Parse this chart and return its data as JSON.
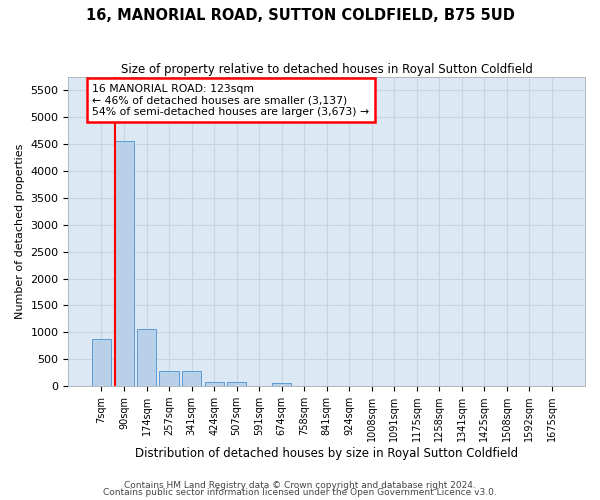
{
  "title": "16, MANORIAL ROAD, SUTTON COLDFIELD, B75 5UD",
  "subtitle": "Size of property relative to detached houses in Royal Sutton Coldfield",
  "xlabel": "Distribution of detached houses by size in Royal Sutton Coldfield",
  "ylabel": "Number of detached properties",
  "footnote1": "Contains HM Land Registry data © Crown copyright and database right 2024.",
  "footnote2": "Contains public sector information licensed under the Open Government Licence v3.0.",
  "bar_labels": [
    "7sqm",
    "90sqm",
    "174sqm",
    "257sqm",
    "341sqm",
    "424sqm",
    "507sqm",
    "591sqm",
    "674sqm",
    "758sqm",
    "841sqm",
    "924sqm",
    "1008sqm",
    "1091sqm",
    "1175sqm",
    "1258sqm",
    "1341sqm",
    "1425sqm",
    "1508sqm",
    "1592sqm",
    "1675sqm"
  ],
  "bar_values": [
    880,
    4560,
    1060,
    285,
    285,
    85,
    85,
    0,
    60,
    0,
    0,
    0,
    0,
    0,
    0,
    0,
    0,
    0,
    0,
    0,
    0
  ],
  "bar_color": "#b8d0e8",
  "bar_edge_color": "#5b9bd5",
  "grid_color": "#c8d4df",
  "background_color": "#dce8f3",
  "red_line_x": 0.58,
  "annotation_text": "16 MANORIAL ROAD: 123sqm\n← 46% of detached houses are smaller (3,137)\n54% of semi-detached houses are larger (3,673) →",
  "ylim_max": 5750,
  "yticks": [
    0,
    500,
    1000,
    1500,
    2000,
    2500,
    3000,
    3500,
    4000,
    4500,
    5000,
    5500
  ]
}
